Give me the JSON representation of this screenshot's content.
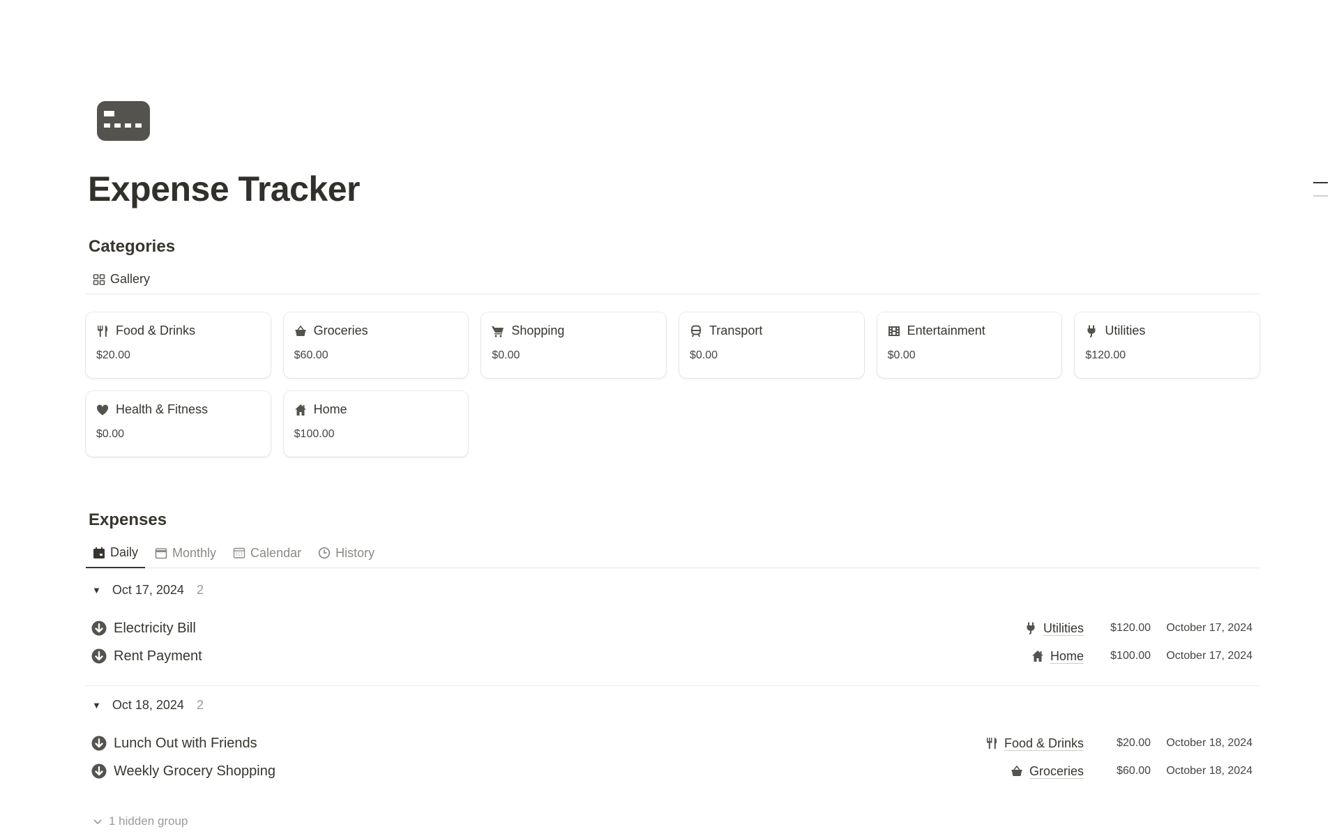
{
  "page": {
    "title": "Expense Tracker",
    "icon": "credit-card-icon"
  },
  "categories": {
    "heading": "Categories",
    "view_tab": {
      "label": "Gallery",
      "icon": "gallery-icon"
    },
    "cards": [
      {
        "name": "Food & Drinks",
        "amount": "$20.00",
        "icon": "fork-knife-icon"
      },
      {
        "name": "Groceries",
        "amount": "$60.00",
        "icon": "basket-icon"
      },
      {
        "name": "Shopping",
        "amount": "$0.00",
        "icon": "cart-icon"
      },
      {
        "name": "Transport",
        "amount": "$0.00",
        "icon": "bus-icon"
      },
      {
        "name": "Entertainment",
        "amount": "$0.00",
        "icon": "film-icon"
      },
      {
        "name": "Utilities",
        "amount": "$120.00",
        "icon": "plug-icon"
      },
      {
        "name": "Health & Fitness",
        "amount": "$0.00",
        "icon": "heart-icon"
      },
      {
        "name": "Home",
        "amount": "$100.00",
        "icon": "house-icon"
      }
    ]
  },
  "expenses": {
    "heading": "Expenses",
    "tabs": [
      {
        "label": "Daily",
        "active": true
      },
      {
        "label": "Monthly"
      },
      {
        "label": "Calendar"
      },
      {
        "label": "History"
      }
    ],
    "groups": [
      {
        "label": "Oct 17, 2024",
        "count": "2",
        "rows": [
          {
            "name": "Electricity Bill",
            "category": "Utilities",
            "amount": "$120.00",
            "date": "October 17, 2024"
          },
          {
            "name": "Rent Payment",
            "category": "Home",
            "amount": "$100.00",
            "date": "October 17, 2024"
          }
        ]
      },
      {
        "label": "Oct 18, 2024",
        "count": "2",
        "rows": [
          {
            "name": "Lunch Out with Friends",
            "category": "Food & Drinks",
            "amount": "$20.00",
            "date": "October 18, 2024"
          },
          {
            "name": "Weekly Grocery Shopping",
            "category": "Groceries",
            "amount": "$60.00",
            "date": "October 18, 2024"
          }
        ]
      }
    ],
    "hidden_groups": "1 hidden group"
  },
  "colors": {
    "text": "#37352f",
    "icon": "#55534e",
    "muted": "#9b9a97"
  }
}
